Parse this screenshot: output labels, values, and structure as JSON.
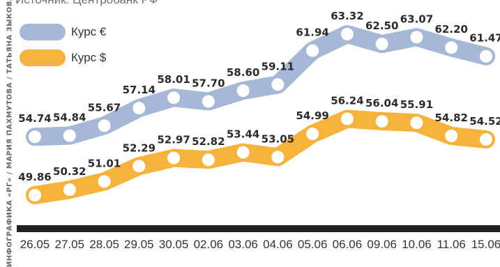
{
  "source": "Источник: Центробанк РФ",
  "credit": "ИНФОГРАФИКА «РГ» / МАРИЯ ПАХМУТОВА / ТАТЬЯНА ЗЫКОВА",
  "legend": [
    {
      "label": "Курс €",
      "color": "#a5b8d6"
    },
    {
      "label": "Курс $",
      "color": "#f7b23b"
    }
  ],
  "chart_data": {
    "type": "line",
    "categories": [
      "26.05",
      "27.05",
      "28.05",
      "29.05",
      "30.05",
      "02.06",
      "03.06",
      "04.06",
      "05.06",
      "06.06",
      "09.06",
      "10.06",
      "11.06",
      "15.06"
    ],
    "series": [
      {
        "name": "Курс €",
        "color": "#a5b8d6",
        "values": [
          54.74,
          54.84,
          55.67,
          57.14,
          58.01,
          57.7,
          58.6,
          59.11,
          61.94,
          63.32,
          62.5,
          63.07,
          62.2,
          61.47
        ],
        "labels": [
          "54.74",
          "54.84",
          "55.67",
          "57.14",
          "58.01",
          "57.70",
          "58.60",
          "59.11",
          "61.94",
          "63.32",
          "62.50",
          "63.07",
          "62.20",
          "61.47"
        ]
      },
      {
        "name": "Курс $",
        "color": "#f7b23b",
        "values": [
          49.86,
          50.32,
          51.01,
          52.29,
          52.97,
          52.82,
          53.44,
          53.05,
          54.99,
          56.24,
          56.04,
          55.91,
          54.82,
          54.52
        ],
        "labels": [
          "49.86",
          "50.32",
          "51.01",
          "52.29",
          "52.97",
          "52.82",
          "53.44",
          "53.05",
          "54.99",
          "56.24",
          "56.04",
          "55.91",
          "54.82",
          "54.52"
        ]
      }
    ],
    "grid": false,
    "legend_position": "top-left",
    "axis_bar_color": "#231f20"
  }
}
